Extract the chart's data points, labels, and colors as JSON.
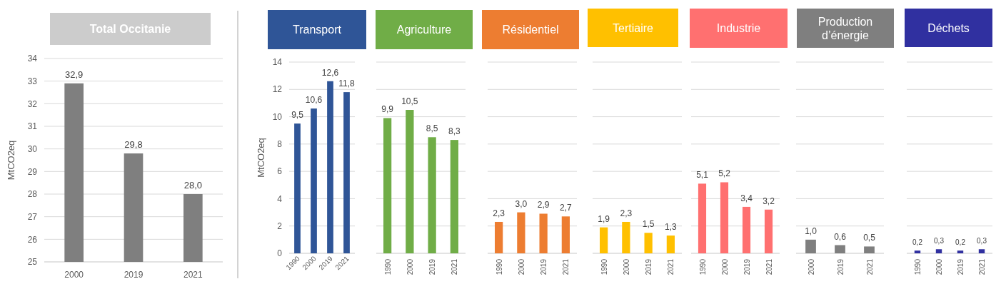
{
  "chart_data": [
    {
      "type": "bar",
      "title": "Total Occitanie",
      "ylabel": "MtCO2eq",
      "categories": [
        "2000",
        "2019",
        "2021"
      ],
      "series": [
        {
          "color": "#7f7f7f",
          "values": [
            32.9,
            29.8,
            28.0
          ],
          "value_labels": [
            "32,9",
            "29,8",
            "28,0"
          ]
        }
      ],
      "ylim": [
        25,
        34
      ],
      "yticks": [
        25,
        26,
        27,
        28,
        29,
        30,
        31,
        32,
        33,
        34
      ],
      "grid": true
    },
    {
      "type": "bar",
      "title": "Transport",
      "ylabel": "MtCO2eq",
      "categories": [
        "1990",
        "2000",
        "2019",
        "2021"
      ],
      "series": [
        {
          "color": "#2f5597",
          "values": [
            9.5,
            10.6,
            12.6,
            11.8
          ],
          "value_labels": [
            "9,5",
            "10,6",
            "12,6",
            "11,8"
          ]
        }
      ],
      "ylim": [
        0,
        14
      ],
      "yticks": [
        0,
        2,
        4,
        6,
        8,
        10,
        12,
        14
      ],
      "grid": true
    },
    {
      "type": "bar",
      "title": "Agriculture",
      "categories": [
        "1990",
        "2000",
        "2019",
        "2021"
      ],
      "series": [
        {
          "color": "#70ad47",
          "values": [
            9.9,
            10.5,
            8.5,
            8.3
          ],
          "value_labels": [
            "9,9",
            "10,5",
            "8,5",
            "8,3"
          ]
        }
      ],
      "ylim": [
        0,
        14
      ],
      "yticks": [
        0,
        2,
        4,
        6,
        8,
        10,
        12,
        14
      ],
      "grid": true,
      "tick_labels": "x"
    },
    {
      "type": "bar",
      "title": "Résidentiel",
      "categories": [
        "1990",
        "2000",
        "2019",
        "2021"
      ],
      "series": [
        {
          "color": "#ed7d31",
          "values": [
            2.3,
            3.0,
            2.9,
            2.7
          ],
          "value_labels": [
            "2,3",
            "3,0",
            "2,9",
            "2,7"
          ]
        }
      ],
      "ylim": [
        0,
        14
      ],
      "yticks": [
        0,
        2,
        4,
        6,
        8,
        10,
        12,
        14
      ],
      "grid": true,
      "tick_labels": "x"
    },
    {
      "type": "bar",
      "title": "Tertiaire",
      "categories": [
        "1990",
        "2000",
        "2019",
        "2021"
      ],
      "series": [
        {
          "color": "#ffc000",
          "values": [
            1.9,
            2.3,
            1.5,
            1.3
          ],
          "value_labels": [
            "1,9",
            "2,3",
            "1,5",
            "1,3"
          ]
        }
      ],
      "ylim": [
        0,
        14
      ],
      "yticks": [
        0,
        2,
        4,
        6,
        8,
        10,
        12,
        14
      ],
      "grid": true,
      "tick_labels": "x"
    },
    {
      "type": "bar",
      "title": "Industrie",
      "categories": [
        "1990",
        "2000",
        "2019",
        "2021"
      ],
      "series": [
        {
          "color": "#ff7070",
          "values": [
            5.1,
            5.2,
            3.4,
            3.2
          ],
          "value_labels": [
            "5,1",
            "5,2",
            "3,4",
            "3,2"
          ]
        }
      ],
      "ylim": [
        0,
        14
      ],
      "yticks": [
        0,
        2,
        4,
        6,
        8,
        10,
        12,
        14
      ],
      "grid": true,
      "tick_labels": "x"
    },
    {
      "type": "bar",
      "title": "Production d’énergie",
      "categories": [
        "2000",
        "2019",
        "2021"
      ],
      "series": [
        {
          "color": "#7f7f7f",
          "values": [
            1.0,
            0.6,
            0.5
          ],
          "value_labels": [
            "1,0",
            "0,6",
            "0,5"
          ]
        }
      ],
      "ylim": [
        0,
        14
      ],
      "yticks": [
        0,
        2,
        4,
        6,
        8,
        10,
        12,
        14
      ],
      "grid": true,
      "tick_labels": "x"
    },
    {
      "type": "bar",
      "title": "Déchets",
      "categories": [
        "1990",
        "2000",
        "2019",
        "2021"
      ],
      "series": [
        {
          "color": "#3030a0",
          "values": [
            0.2,
            0.3,
            0.2,
            0.3
          ],
          "value_labels": [
            "0,2",
            "0,3",
            "0,2",
            "0,3"
          ]
        }
      ],
      "ylim": [
        0,
        14
      ],
      "yticks": [
        0,
        2,
        4,
        6,
        8,
        10,
        12,
        14
      ],
      "grid": true,
      "tick_labels": "x"
    }
  ]
}
